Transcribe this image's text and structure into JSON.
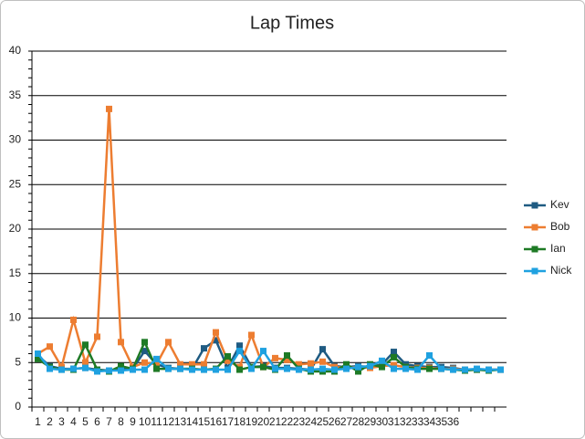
{
  "chart_data": {
    "type": "line",
    "title": "Lap Times",
    "categories": [
      "1",
      "2",
      "3",
      "4",
      "5",
      "6",
      "7",
      "8",
      "9",
      "10",
      "11",
      "12",
      "13",
      "14",
      "15",
      "16",
      "17",
      "18",
      "19",
      "20",
      "21",
      "22",
      "23",
      "24",
      "25",
      "26",
      "27",
      "28",
      "29",
      "30",
      "31",
      "32",
      "33",
      "34",
      "35",
      "36",
      null,
      null,
      null,
      null
    ],
    "series": [
      {
        "name": "Kev",
        "color": "#1f5b82",
        "values": [
          5.8,
          4.6,
          4.3,
          4.3,
          4.4,
          4.2,
          4.1,
          4.3,
          4.3,
          6.3,
          4.8,
          4.4,
          4.3,
          4.3,
          6.6,
          7.5,
          4.4,
          6.9,
          4.5,
          4.6,
          4.4,
          4.4,
          4.3,
          4.2,
          6.5,
          4.6,
          4.5,
          4.6,
          4.5,
          4.8,
          6.2,
          4.8,
          4.6,
          4.5,
          4.5,
          4.4,
          4.2,
          4.2,
          4.2,
          4.2
        ]
      },
      {
        "name": "Bob",
        "color": "#ed7d31",
        "values": [
          6.0,
          6.8,
          4.5,
          9.8,
          5.0,
          7.9,
          33.5,
          7.3,
          4.5,
          5.0,
          4.8,
          7.3,
          4.8,
          4.8,
          4.8,
          8.4,
          5.2,
          4.5,
          8.1,
          4.5,
          5.5,
          5.3,
          4.8,
          4.9,
          5.1,
          4.5,
          4.4,
          4.5,
          4.4,
          4.6,
          4.7,
          4.5,
          4.4,
          4.4,
          4.3,
          4.3,
          4.2,
          4.2,
          4.2,
          4.2
        ]
      },
      {
        "name": "Ian",
        "color": "#1e7a25",
        "values": [
          5.4,
          4.5,
          4.2,
          4.2,
          7.0,
          4.2,
          4.0,
          4.6,
          4.3,
          7.3,
          4.3,
          4.3,
          4.3,
          4.3,
          4.2,
          4.3,
          5.7,
          4.2,
          4.5,
          4.5,
          4.2,
          5.8,
          4.3,
          4.0,
          4.0,
          4.0,
          4.8,
          4.0,
          4.8,
          4.5,
          5.6,
          4.5,
          4.3,
          4.3,
          4.3,
          4.2,
          4.1,
          4.2,
          4.1,
          4.2
        ]
      },
      {
        "name": "Nick",
        "color": "#1fa1e0",
        "values": [
          6.0,
          4.3,
          4.2,
          4.3,
          4.4,
          4.0,
          4.1,
          4.1,
          4.2,
          4.2,
          5.4,
          4.3,
          4.3,
          4.2,
          4.2,
          4.2,
          4.2,
          6.3,
          4.3,
          6.3,
          4.3,
          4.3,
          4.2,
          4.2,
          4.3,
          4.2,
          4.3,
          4.5,
          4.6,
          5.2,
          4.3,
          4.3,
          4.2,
          5.8,
          4.3,
          4.2,
          4.2,
          4.3,
          4.2,
          4.2
        ]
      }
    ],
    "ylim": [
      0,
      40
    ],
    "yticks": [
      0,
      5,
      10,
      15,
      20,
      25,
      30,
      35,
      40
    ],
    "grid": true,
    "legend": "right"
  }
}
